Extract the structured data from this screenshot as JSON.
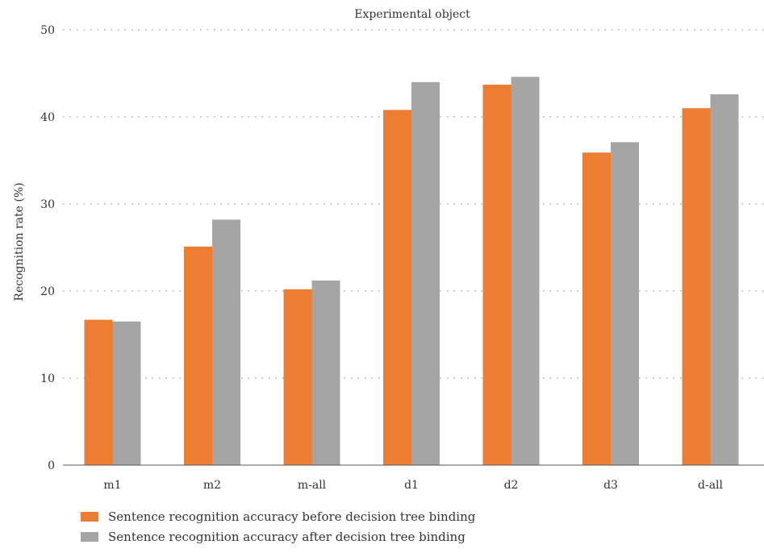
{
  "chart_data": {
    "type": "bar",
    "title": "Experimental object",
    "xlabel": "",
    "ylabel": "Recognition rate (%)",
    "ylim": [
      0,
      50
    ],
    "yticks": [
      0,
      10,
      20,
      30,
      40,
      50
    ],
    "grid": true,
    "legend_position": "bottom",
    "categories": [
      "m1",
      "m2",
      "m-all",
      "d1",
      "d2",
      "d3",
      "d-all"
    ],
    "series": [
      {
        "name": "Sentence recognition accuracy before decision tree binding",
        "color": "#ED7D31",
        "values": [
          16.7,
          25.1,
          20.2,
          40.8,
          43.7,
          35.9,
          41.0
        ]
      },
      {
        "name": "Sentence recognition accuracy after decision tree binding",
        "color": "#A5A5A5",
        "values": [
          16.5,
          28.2,
          21.2,
          44.0,
          44.6,
          37.1,
          42.6
        ]
      }
    ]
  }
}
